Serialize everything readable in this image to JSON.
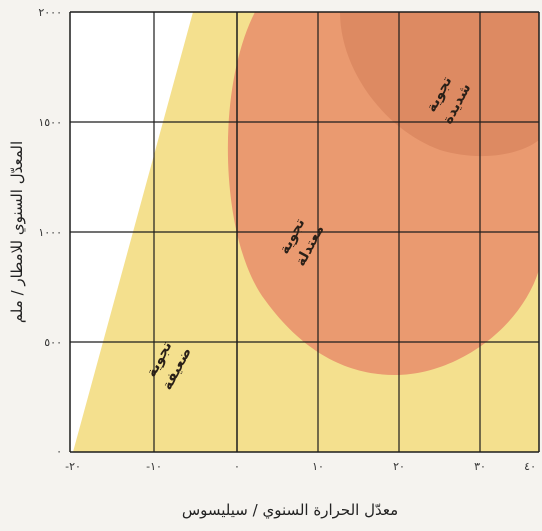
{
  "axes": {
    "x_title": "معدّل الحرارة السنوي / سيليسوس",
    "y_title": "المعدّل السنوي للامطار / ملم",
    "x_ticks": [
      "-٢٠",
      "-١٠",
      "٠",
      "١٠",
      "٢٠",
      "٣٠",
      "٤٠"
    ],
    "y_ticks": [
      "٢٠٠٠",
      "١٥٠٠",
      "١٠٠٠",
      "٥٠٠",
      "٠"
    ]
  },
  "regions": {
    "weak": [
      "تجوية",
      "ضعيفة"
    ],
    "moderate": [
      "تجوية",
      "معتدلة"
    ],
    "strong": [
      "تجوية",
      "شديدة"
    ]
  },
  "colors": {
    "weak": "#f4e08e",
    "moderate": "#ea9a70",
    "strong": "#dd8a62",
    "grid": "#1c1c1c"
  }
}
